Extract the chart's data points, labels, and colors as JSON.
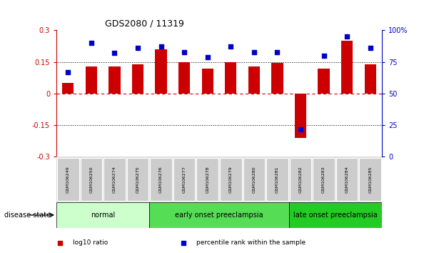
{
  "title": "GDS2080 / 11319",
  "samples": [
    "GSM106249",
    "GSM106250",
    "GSM106274",
    "GSM106275",
    "GSM106276",
    "GSM106277",
    "GSM106278",
    "GSM106279",
    "GSM106280",
    "GSM106281",
    "GSM106282",
    "GSM106283",
    "GSM106284",
    "GSM106285"
  ],
  "log10_ratio": [
    0.05,
    0.13,
    0.13,
    0.14,
    0.21,
    0.15,
    0.12,
    0.15,
    0.13,
    0.145,
    -0.21,
    0.12,
    0.25,
    0.14
  ],
  "percentile_rank": [
    67,
    90,
    82,
    86,
    87,
    83,
    79,
    87,
    83,
    83,
    22,
    80,
    95,
    86
  ],
  "ylim_left": [
    -0.3,
    0.3
  ],
  "ylim_right": [
    0,
    100
  ],
  "yticks_left": [
    -0.3,
    -0.15,
    0,
    0.15,
    0.3
  ],
  "yticks_right": [
    0,
    25,
    50,
    75,
    100
  ],
  "ytick_labels_left": [
    "-0.3",
    "-0.15",
    "0",
    "0.15",
    "0.3"
  ],
  "ytick_labels_right": [
    "0",
    "25",
    "50",
    "75",
    "100%"
  ],
  "bar_color": "#cc0000",
  "dot_color": "#0000cc",
  "groups": [
    {
      "label": "normal",
      "start": 0,
      "end": 3,
      "color": "#ccffcc"
    },
    {
      "label": "early onset preeclampsia",
      "start": 4,
      "end": 9,
      "color": "#55dd55"
    },
    {
      "label": "late onset preeclampsia",
      "start": 10,
      "end": 13,
      "color": "#22cc22"
    }
  ],
  "disease_state_label": "disease state",
  "legend_items": [
    {
      "color": "#cc0000",
      "label": "log10 ratio"
    },
    {
      "color": "#0000cc",
      "label": "percentile rank within the sample"
    }
  ],
  "bg_color": "#ffffff",
  "plot_bg": "#ffffff",
  "sample_box_color": "#cccccc",
  "sample_bg_color": "#dddddd"
}
